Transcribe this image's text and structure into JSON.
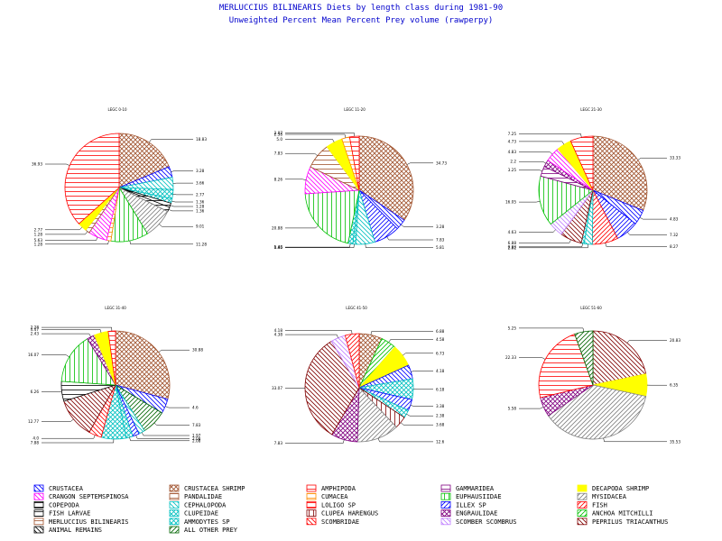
{
  "figure": {
    "title": "MERLUCCIUS BILINEARIS Diets by length class during 1981-90",
    "subtitle": "Unweighted Percent Mean Percent Prey  volume (rawperpy)"
  },
  "legend": {
    "items": [
      {
        "name": "CRUSTACEA",
        "color": "#0000ff",
        "pattern": "diag-down"
      },
      {
        "name": "CRUSTACEA SHRIMP",
        "color": "#a0522d",
        "pattern": "cross"
      },
      {
        "name": "AMPHIPODA",
        "color": "#ff0000",
        "pattern": "hlines"
      },
      {
        "name": "GAMMARIDEA",
        "color": "#800080",
        "pattern": "hlines"
      },
      {
        "name": "DECAPODA SHRIMP",
        "color": "#ffff00",
        "pattern": "solid"
      },
      {
        "name": "CRANGON SEPTEMSPINOSA",
        "color": "#ff00ff",
        "pattern": "diag-down"
      },
      {
        "name": "PANDALIDAE",
        "color": "#a0522d",
        "pattern": "hlines"
      },
      {
        "name": "CUMACEA",
        "color": "#ff8c00",
        "pattern": "hlines"
      },
      {
        "name": "EUPHAUSIIDAE",
        "color": "#00c000",
        "pattern": "vlines"
      },
      {
        "name": "MYSIDACEA",
        "color": "#808080",
        "pattern": "diag-up"
      },
      {
        "name": "COPEPODA",
        "color": "#000000",
        "pattern": "hlines"
      },
      {
        "name": "CEPHALOPODA",
        "color": "#00c0c0",
        "pattern": "diag-down"
      },
      {
        "name": "LOLIGO SP",
        "color": "#ff0000",
        "pattern": "hlines"
      },
      {
        "name": "ILLEX SP",
        "color": "#0000ff",
        "pattern": "diag-up"
      },
      {
        "name": "FISH",
        "color": "#ff0000",
        "pattern": "diag-up"
      },
      {
        "name": "FISH LARVAE",
        "color": "#000000",
        "pattern": "hlines"
      },
      {
        "name": "CLUPEIDAE",
        "color": "#00c0c0",
        "pattern": "cross"
      },
      {
        "name": "CLUPEA HARENGUS",
        "color": "#800000",
        "pattern": "vlines"
      },
      {
        "name": "ENGRAULIDAE",
        "color": "#800080",
        "pattern": "cross"
      },
      {
        "name": "ANCHOA MITCHILLI",
        "color": "#00c000",
        "pattern": "diag-up"
      },
      {
        "name": "MERLUCCIUS BILINEARIS",
        "color": "#a0522d",
        "pattern": "hlines"
      },
      {
        "name": "AMMODYTES SP",
        "color": "#00c0c0",
        "pattern": "cross"
      },
      {
        "name": "SCOMBRIDAE",
        "color": "#ff0000",
        "pattern": "diag-down"
      },
      {
        "name": "SCOMBER SCOMBRUS",
        "color": "#c080ff",
        "pattern": "diag-down"
      },
      {
        "name": "PEPRILUS TRIACANTHUS",
        "color": "#800000",
        "pattern": "diag-down"
      },
      {
        "name": "ANIMAL REMAINS",
        "color": "#000000",
        "pattern": "diag-down"
      },
      {
        "name": "ALL OTHER PREY",
        "color": "#006400",
        "pattern": "diag-up"
      }
    ]
  },
  "chart_data": [
    {
      "type": "pie",
      "title": "LEGC 0-10",
      "slices": [
        {
          "prey": "CRUSTACEA SHRIMP",
          "value": 18.83,
          "label": "18.83"
        },
        {
          "prey": "CRUSTACEA",
          "value": 3.28,
          "label": "3.28"
        },
        {
          "prey": "CEPHALOPODA",
          "value": 3.66,
          "label": "3.66"
        },
        {
          "prey": "AMMODYTES SP",
          "value": 2.77,
          "label": "2.77"
        },
        {
          "prey": "CLUPEIDAE",
          "value": 1.36,
          "label": "1.36"
        },
        {
          "prey": "FISH LARVAE",
          "value": 1.28,
          "label": "1.28"
        },
        {
          "prey": "COPEPODA",
          "value": 1.36,
          "label": "1.36"
        },
        {
          "prey": "MYSIDACEA",
          "value": 9.01,
          "label": "9.01"
        },
        {
          "prey": "EUPHAUSIIDAE",
          "value": 11.28,
          "label": "11.28"
        },
        {
          "prey": "CUMACEA",
          "value": 1.28,
          "label": "1.28"
        },
        {
          "prey": "CRANGON SEPTEMSPINOSA",
          "value": 5.63,
          "label": "5.63"
        },
        {
          "prey": "PANDALIDAE",
          "value": 1.28,
          "label": "1.28"
        },
        {
          "prey": "DECAPODA SHRIMP",
          "value": 2.77,
          "label": "2.77"
        },
        {
          "prey": "AMPHIPODA",
          "value": 36.93,
          "label": "36.93"
        }
      ]
    },
    {
      "type": "pie",
      "title": "LEGC 11-20",
      "slices": [
        {
          "prey": "CRUSTACEA SHRIMP",
          "value": 34.73,
          "label": "34.73"
        },
        {
          "prey": "CRUSTACEA",
          "value": 3.28,
          "label": "3.28"
        },
        {
          "prey": "ILLEX SP",
          "value": 7.83,
          "label": "7.83"
        },
        {
          "prey": "CEPHALOPODA",
          "value": 5.81,
          "label": "5.81"
        },
        {
          "prey": "CLUPEIDAE",
          "value": 0.86,
          "label": "0.86"
        },
        {
          "prey": "AMMODYTES SP",
          "value": 1.43,
          "label": "1.43"
        },
        {
          "prey": "EUPHAUSIIDAE",
          "value": 20.88,
          "label": "20.88"
        },
        {
          "prey": "CRANGON SEPTEMSPINOSA",
          "value": 8.26,
          "label": "8.26"
        },
        {
          "prey": "PANDALIDAE",
          "value": 7.83,
          "label": "7.83"
        },
        {
          "prey": "DECAPODA SHRIMP",
          "value": 5.0,
          "label": "5.0"
        },
        {
          "prey": "CUMACEA",
          "value": 2.38,
          "label": "2.38"
        },
        {
          "prey": "AMPHIPODA",
          "value": 2.87,
          "label": "2.87"
        }
      ]
    },
    {
      "type": "pie",
      "title": "LEGC 21-30",
      "slices": [
        {
          "prey": "CRUSTACEA SHRIMP",
          "value": 33.33,
          "label": "33.33"
        },
        {
          "prey": "CRUSTACEA",
          "value": 4.83,
          "label": "4.83"
        },
        {
          "prey": "ILLEX SP",
          "value": 7.32,
          "label": "7.32"
        },
        {
          "prey": "FISH",
          "value": 8.27,
          "label": "8.27"
        },
        {
          "prey": "CEPHALOPODA",
          "value": 2.61,
          "label": "2.61"
        },
        {
          "prey": "CLUPEIDAE",
          "value": 0.93,
          "label": "0.93"
        },
        {
          "prey": "PEPRILUS TRIACANTHUS",
          "value": 6.88,
          "label": "6.88"
        },
        {
          "prey": "SCOMBER SCOMBRUS",
          "value": 4.63,
          "label": "4.63"
        },
        {
          "prey": "EUPHAUSIIDAE",
          "value": 16.05,
          "label": "16.05"
        },
        {
          "prey": "GAMMARIDEA",
          "value": 3.25,
          "label": "3.25"
        },
        {
          "prey": "ENGRAULIDAE",
          "value": 2.2,
          "label": "2.2"
        },
        {
          "prey": "CRANGON SEPTEMSPINOSA",
          "value": 4.83,
          "label": "4.83"
        },
        {
          "prey": "DECAPODA SHRIMP",
          "value": 4.73,
          "label": "4.73"
        },
        {
          "prey": "AMPHIPODA",
          "value": 7.25,
          "label": "7.25"
        }
      ]
    },
    {
      "type": "pie",
      "title": "LEGC 31-40",
      "slices": [
        {
          "prey": "CRUSTACEA SHRIMP",
          "value": 30.88,
          "label": "30.88"
        },
        {
          "prey": "CRUSTACEA",
          "value": 4.6,
          "label": "4.6"
        },
        {
          "prey": "ALL OTHER PREY",
          "value": 7.83,
          "label": "7.83"
        },
        {
          "prey": "CEPHALOPODA",
          "value": 1.97,
          "label": "1.97"
        },
        {
          "prey": "ILLEX SP",
          "value": 2.08,
          "label": "2.08"
        },
        {
          "prey": "AMMODYTES SP",
          "value": 2.08,
          "label": "2.08"
        },
        {
          "prey": "CLUPEIDAE",
          "value": 7.88,
          "label": "7.88"
        },
        {
          "prey": "SCOMBRIDAE",
          "value": 4.0,
          "label": "4.0"
        },
        {
          "prey": "PEPRILUS TRIACANTHUS",
          "value": 12.77,
          "label": "12.77"
        },
        {
          "prey": "FISH LARVAE",
          "value": 6.26,
          "label": "6.26"
        },
        {
          "prey": "EUPHAUSIIDAE",
          "value": 16.07,
          "label": "16.07"
        },
        {
          "prey": "ENGRAULIDAE",
          "value": 2.43,
          "label": "2.43"
        },
        {
          "prey": "DECAPODA SHRIMP",
          "value": 4.47,
          "label": "4.47"
        },
        {
          "prey": "AMPHIPODA",
          "value": 2.28,
          "label": "2.28"
        }
      ]
    },
    {
      "type": "pie",
      "title": "LEGC 41-50",
      "slices": [
        {
          "prey": "CRUSTACEA SHRIMP",
          "value": 6.88,
          "label": "6.88"
        },
        {
          "prey": "ANCHOA MITCHILLI",
          "value": 4.58,
          "label": "4.58"
        },
        {
          "prey": "DECAPODA SHRIMP",
          "value": 6.73,
          "label": "6.73"
        },
        {
          "prey": "CRUSTACEA",
          "value": 4.18,
          "label": "4.18"
        },
        {
          "prey": "CLUPEIDAE",
          "value": 6.18,
          "label": "6.18"
        },
        {
          "prey": "ILLEX SP",
          "value": 3.38,
          "label": "3.38"
        },
        {
          "prey": "AMMODYTES SP",
          "value": 2.38,
          "label": "2.38"
        },
        {
          "prey": "CLUPEA HARENGUS",
          "value": 3.68,
          "label": "3.68"
        },
        {
          "prey": "MYSIDACEA",
          "value": 12.6,
          "label": "12.6"
        },
        {
          "prey": "ENGRAULIDAE",
          "value": 7.83,
          "label": "7.83"
        },
        {
          "prey": "PEPRILUS TRIACANTHUS",
          "value": 33.07,
          "label": "33.07"
        },
        {
          "prey": "SCOMBER SCOMBRUS",
          "value": 4.38,
          "label": "4.38"
        },
        {
          "prey": "FISH",
          "value": 4.18,
          "label": "4.18"
        }
      ]
    },
    {
      "type": "pie",
      "title": "LEGC 51-60",
      "slices": [
        {
          "prey": "PEPRILUS TRIACANTHUS",
          "value": 20.83,
          "label": "20.83"
        },
        {
          "prey": "DECAPODA SHRIMP",
          "value": 6.35,
          "label": "6.35"
        },
        {
          "prey": "MYSIDACEA",
          "value": 35.53,
          "label": "35.53"
        },
        {
          "prey": "ENGRAULIDAE",
          "value": 5.58,
          "label": "5.58"
        },
        {
          "prey": "AMPHIPODA",
          "value": 22.33,
          "label": "22.33"
        },
        {
          "prey": "ALL OTHER PREY",
          "value": 5.25,
          "label": "5.25"
        }
      ]
    }
  ]
}
